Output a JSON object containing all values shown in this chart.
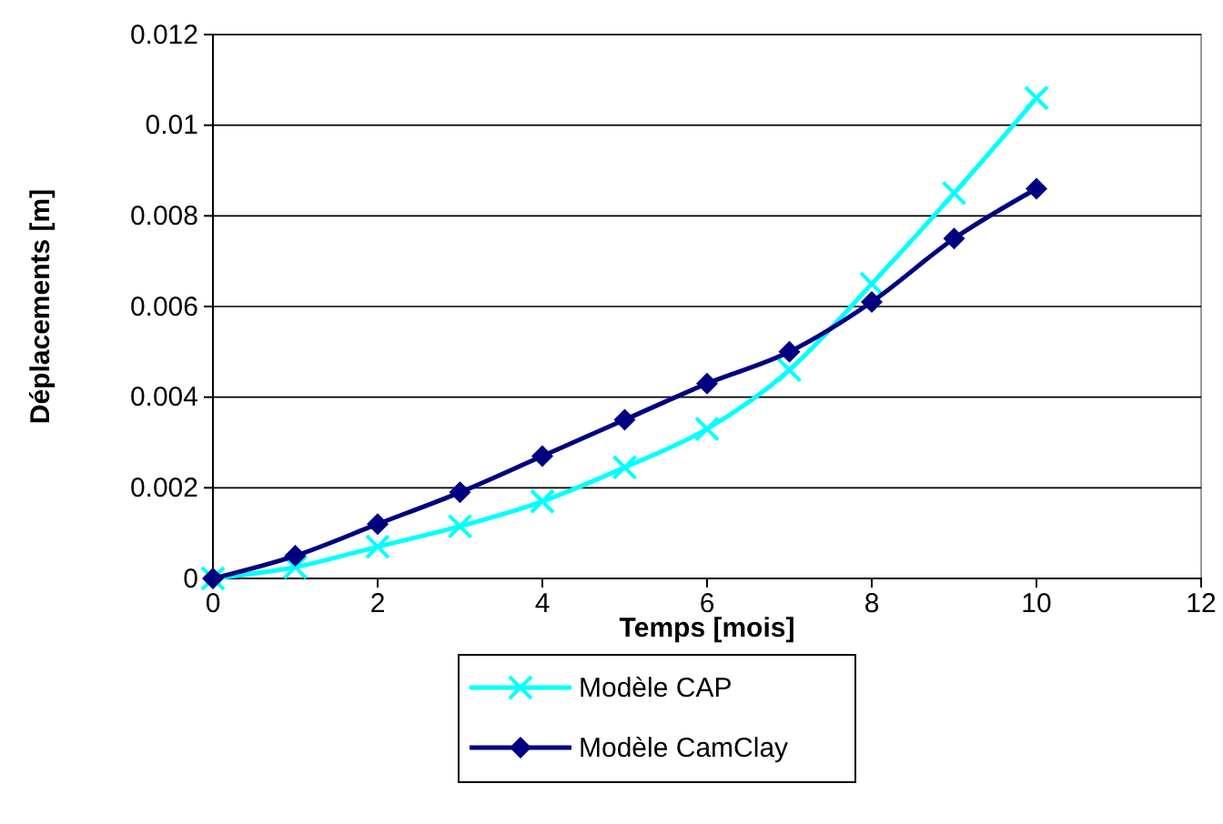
{
  "chart_data": {
    "type": "line",
    "xlabel": "Temps [mois]",
    "ylabel": "Déplacements [m]",
    "x": [
      0,
      1,
      2,
      3,
      4,
      5,
      6,
      7,
      8,
      9,
      10
    ],
    "series": [
      {
        "name": "Modèle CAP",
        "color": "#00ffff",
        "marker": "cross",
        "values": [
          0,
          0.00025,
          0.0007,
          0.00115,
          0.0017,
          0.00245,
          0.0033,
          0.0046,
          0.0065,
          0.0085,
          0.0106
        ]
      },
      {
        "name": "Modèle CamClay",
        "color": "#000080",
        "marker": "diamond",
        "values": [
          0,
          0.0005,
          0.0012,
          0.0019,
          0.0027,
          0.0035,
          0.0043,
          0.005,
          0.0061,
          0.0075,
          0.0086
        ]
      }
    ],
    "xlim": [
      0,
      12
    ],
    "xticks": [
      0,
      2,
      4,
      6,
      8,
      10,
      12
    ],
    "ylim": [
      0,
      0.012
    ],
    "yticks": [
      0,
      0.002,
      0.004,
      0.006,
      0.008,
      0.01,
      0.012
    ],
    "grid": "y",
    "legend": "bottom",
    "line_style": "solid"
  }
}
